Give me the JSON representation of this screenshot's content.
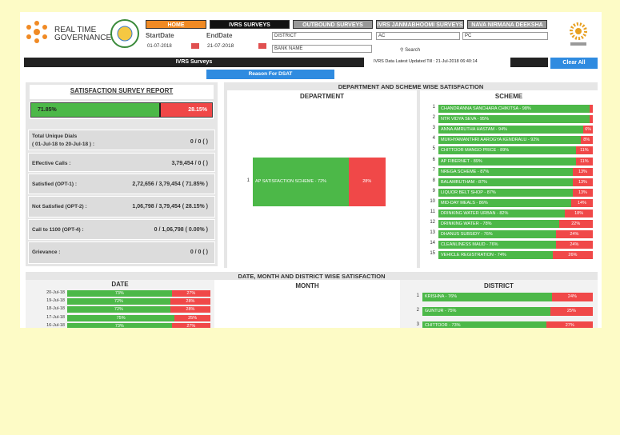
{
  "header": {
    "logo_line1": "REAL TIME",
    "logo_line2": "GOVERNANCE",
    "tabs": [
      "HOME",
      "IVRS SURVEYS",
      "OUTBOUND SURVEYS",
      "IVRS JANMABHOOMI SURVEYS",
      "NAVA NIRMANA DEEKSHA"
    ],
    "start_label": "StartDate",
    "start_value": "01-07-2018",
    "end_label": "EndDate",
    "end_value": "21-07-2018",
    "district": "DISTRICT",
    "ac": "AC",
    "pc": "PC",
    "bank": "BANK NAME",
    "search": "Search"
  },
  "toolbar": {
    "title": "IVRS Surveys",
    "updated": "IVRS Data Latest Updated Till : 21-Jul-2018 06:40:14",
    "clear": "Clear All",
    "reason": "Reason For DSAT"
  },
  "report": {
    "title": "SATISFACTION SURVEY REPORT",
    "satisfied": "71.85%",
    "dissatisfied": "28.15%",
    "rows": [
      {
        "label": "Total Unique Dials",
        "sub": "( 01-Jul-18 to 20-Jul-18 ) :",
        "value": "0 / 0 ( )"
      },
      {
        "label": "Effective Calls :",
        "value": "3,79,454 / 0 ( )"
      },
      {
        "label": "Satisfied (OPT-1) :",
        "value": "2,72,656 / 3,79,454 ( 71.85% )"
      },
      {
        "label": "Not Satisfied (OPT-2) :",
        "value": "1,06,798 / 3,79,454 ( 28.15% )"
      },
      {
        "label": "Call to 1100 (OPT-4) :",
        "value": "0 / 1,06,798 ( 0.00% )"
      },
      {
        "label": "Grievance :",
        "value": "0 / 0 ( )"
      }
    ]
  },
  "dept_scheme": {
    "title": "DEPARTMENT AND SCHEME WISE SATISFACTION",
    "department_heading": "DEPARTMENT",
    "departments": [
      {
        "rank": "1",
        "label": "AP SATISFACTION SCHEME - 72%",
        "red": "28%"
      }
    ],
    "scheme_heading": "SCHEME",
    "schemes": [
      {
        "rank": "1",
        "label": "CHANDRANNA SANCHARA CHIKITSA - 98%"
      },
      {
        "rank": "2",
        "label": "NTR VIDYA SEVA - 95%"
      },
      {
        "rank": "3",
        "label": "ANNA AMRUTHA HASTAM - 94%",
        "red": "6%"
      },
      {
        "rank": "4",
        "label": "MUKHYAMANTHRI AAROGYA KENDRALU - 92%",
        "red": "8%"
      },
      {
        "rank": "5",
        "label": "CHITTOOR MANGO PRICE - 89%",
        "red": "11%"
      },
      {
        "rank": "6",
        "label": "AP FIBERNET - 89%",
        "red": "11%"
      },
      {
        "rank": "7",
        "label": "NREGA SCHEME - 87%",
        "red": "13%"
      },
      {
        "rank": "8",
        "label": "BALAMRUTHAM - 87%",
        "red": "13%"
      },
      {
        "rank": "9",
        "label": "LIQUOR BELT SHOP - 87%",
        "red": "13%"
      },
      {
        "rank": "10",
        "label": "MID-DAY MEALS - 86%",
        "red": "14%"
      },
      {
        "rank": "11",
        "label": "DRINKING WATER URBAN - 82%",
        "red": "18%"
      },
      {
        "rank": "12",
        "label": "DRINKING WATER - 78%",
        "red": "22%"
      },
      {
        "rank": "13",
        "label": "DHANUS SUBSIDY - 76%",
        "red": "24%"
      },
      {
        "rank": "14",
        "label": "CLEANLINESS MAUD - 76%",
        "red": "24%"
      },
      {
        "rank": "15",
        "label": "VEHICLE REGISTRATION - 74%",
        "red": "26%"
      }
    ]
  },
  "bottom": {
    "title": "DATE, MONTH AND DISTRICT WISE SATISFACTION",
    "date_heading": "DATE",
    "month_heading": "MONTH",
    "district_heading": "DISTRICT",
    "dates": [
      {
        "date": "20-Jul-18",
        "green": "73%",
        "red": "27%"
      },
      {
        "date": "19-Jul-18",
        "green": "72%",
        "red": "28%"
      },
      {
        "date": "18-Jul-18",
        "green": "72%",
        "red": "28%"
      },
      {
        "date": "17-Jul-18",
        "green": "75%",
        "red": "25%"
      },
      {
        "date": "16-Jul-18",
        "green": "73%",
        "red": "27%"
      }
    ],
    "districts": [
      {
        "rank": "1",
        "label": "KRISHNA - 76%",
        "red": "24%"
      },
      {
        "rank": "2",
        "label": "GUNTUR - 75%",
        "red": "25%"
      },
      {
        "rank": "3",
        "label": "CHITTOOR - 73%",
        "red": "27%"
      }
    ]
  }
}
